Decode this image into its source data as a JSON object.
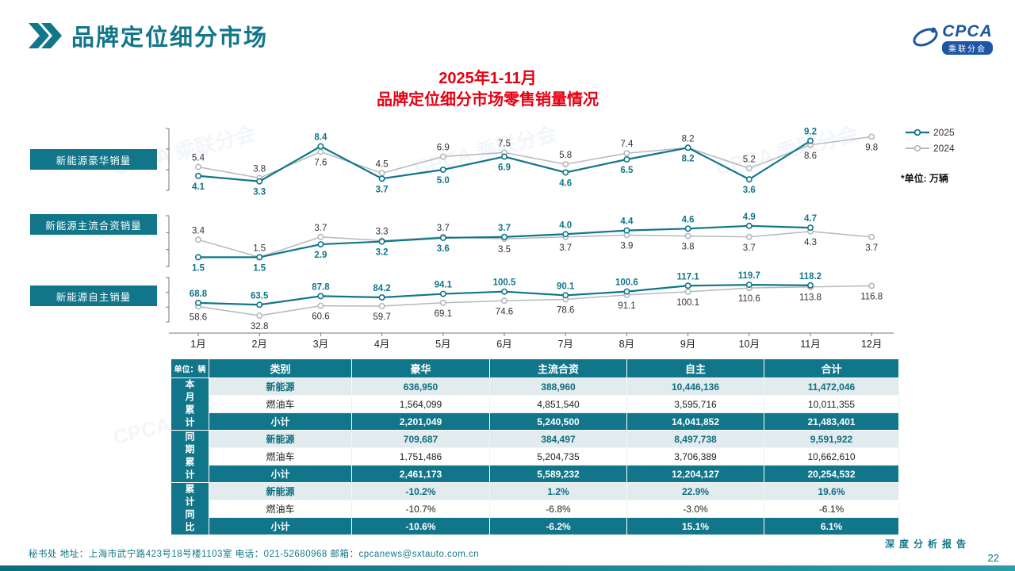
{
  "page": {
    "title": "品牌定位细分市场",
    "watermark": "CPCA 乘联分会",
    "footer": "秘书处   地址：上海市武宁路423号18号楼1103室 电话：021-52680968   邮箱：cpcanews@sxtauto.com.cn",
    "report_label": "深度分析报告",
    "page_number": "22",
    "logo": {
      "brand": "CPCA",
      "sub": "乘联分会"
    }
  },
  "colors": {
    "accent": "#11768a",
    "accent_dark": "#0d6b7a",
    "title_red": "#e60012",
    "logo_blue": "#1c56a5",
    "series_2025": "#11768a",
    "series_2024": "#b5b9bd",
    "label_2024": "#333333"
  },
  "chart": {
    "title_line1": "2025年1-11月",
    "title_line2": "品牌定位细分市场零售销量情况",
    "unit_note": "*单位: 万辆",
    "legend": [
      "2025",
      "2024"
    ],
    "months": [
      "1月",
      "2月",
      "3月",
      "4月",
      "5月",
      "6月",
      "7月",
      "8月",
      "9月",
      "10月",
      "11月",
      "12月"
    ]
  },
  "chart_data": [
    {
      "type": "line",
      "title": "新能源豪华销量",
      "unit": "万辆",
      "decimals": 1,
      "legend_position": "right",
      "categories": [
        "1月",
        "2月",
        "3月",
        "4月",
        "5月",
        "6月",
        "7月",
        "8月",
        "9月",
        "10月",
        "11月",
        "12月"
      ],
      "ylim": [
        2,
        11
      ],
      "series": [
        {
          "name": "2025",
          "values": [
            4.1,
            3.3,
            8.4,
            3.7,
            5.0,
            6.9,
            4.6,
            6.5,
            8.2,
            3.6,
            9.2
          ]
        },
        {
          "name": "2024",
          "values": [
            5.4,
            3.8,
            7.6,
            4.5,
            6.9,
            7.5,
            5.8,
            7.4,
            8.2,
            5.2,
            8.6,
            9.8
          ]
        }
      ]
    },
    {
      "type": "line",
      "title": "新能源主流合资销量",
      "unit": "万辆",
      "decimals": 1,
      "legend_position": "right",
      "categories": [
        "1月",
        "2月",
        "3月",
        "4月",
        "5月",
        "6月",
        "7月",
        "8月",
        "9月",
        "10月",
        "11月",
        "12月"
      ],
      "ylim": [
        0.5,
        6
      ],
      "series": [
        {
          "name": "2025",
          "values": [
            1.5,
            1.5,
            2.9,
            3.2,
            3.6,
            3.7,
            4.0,
            4.4,
            4.6,
            4.9,
            4.7
          ]
        },
        {
          "name": "2024",
          "values": [
            3.4,
            1.5,
            3.7,
            3.3,
            3.7,
            3.5,
            3.7,
            3.9,
            3.8,
            3.7,
            4.3,
            3.7
          ]
        }
      ]
    },
    {
      "type": "line",
      "title": "新能源自主销量",
      "unit": "万辆",
      "decimals": 1,
      "legend_position": "right",
      "categories": [
        "1月",
        "2月",
        "3月",
        "4月",
        "5月",
        "6月",
        "7月",
        "8月",
        "9月",
        "10月",
        "11月",
        "12月"
      ],
      "ylim": [
        15,
        140
      ],
      "series": [
        {
          "name": "2025",
          "values": [
            68.8,
            63.5,
            87.8,
            84.2,
            94.1,
            100.5,
            90.1,
            100.6,
            117.1,
            119.7,
            118.2
          ]
        },
        {
          "name": "2024",
          "values": [
            58.6,
            32.8,
            60.6,
            59.7,
            69.1,
            74.6,
            78.6,
            91.1,
            100.1,
            110.6,
            113.8,
            116.8
          ]
        }
      ]
    }
  ],
  "table": {
    "corner": "单位：辆",
    "headers": [
      "类别",
      "豪华",
      "主流合资",
      "自主",
      "合计"
    ],
    "groups": [
      {
        "label": "本月累计",
        "rows": [
          {
            "type": "nev",
            "cells": [
              "新能源",
              "636,950",
              "388,960",
              "10,446,136",
              "11,472,046"
            ]
          },
          {
            "type": "ice",
            "cells": [
              "燃油车",
              "1,564,099",
              "4,851,540",
              "3,595,716",
              "10,011,355"
            ]
          },
          {
            "type": "sub",
            "cells": [
              "小计",
              "2,201,049",
              "5,240,500",
              "14,041,852",
              "21,483,401"
            ]
          }
        ]
      },
      {
        "label": "同期累计",
        "rows": [
          {
            "type": "nev",
            "cells": [
              "新能源",
              "709,687",
              "384,497",
              "8,497,738",
              "9,591,922"
            ]
          },
          {
            "type": "ice",
            "cells": [
              "燃油车",
              "1,751,486",
              "5,204,735",
              "3,706,389",
              "10,662,610"
            ]
          },
          {
            "type": "sub",
            "cells": [
              "小计",
              "2,461,173",
              "5,589,232",
              "12,204,127",
              "20,254,532"
            ]
          }
        ]
      },
      {
        "label": "累计同比",
        "rows": [
          {
            "type": "nev",
            "cells": [
              "新能源",
              "-10.2%",
              "1.2%",
              "22.9%",
              "19.6%"
            ]
          },
          {
            "type": "ice",
            "cells": [
              "燃油车",
              "-10.7%",
              "-6.8%",
              "-3.0%",
              "-6.1%"
            ]
          },
          {
            "type": "sub",
            "cells": [
              "小计",
              "-10.6%",
              "-6.2%",
              "15.1%",
              "6.1%"
            ]
          }
        ]
      }
    ]
  }
}
